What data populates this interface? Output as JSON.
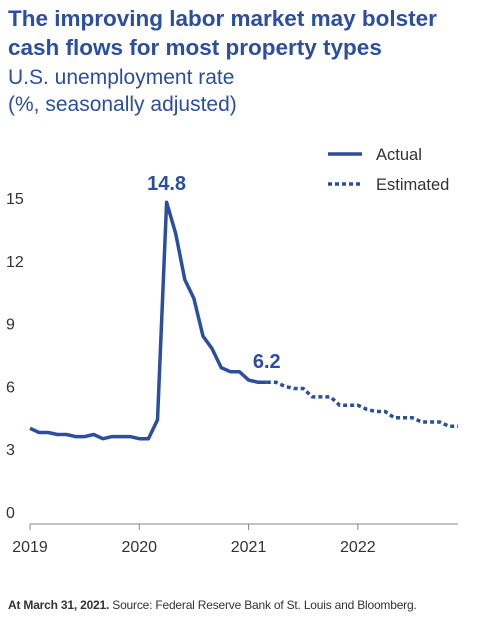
{
  "title": "The improving labor market may bolster cash flows for most property types",
  "subtitle": {
    "line1": "U.S. unemployment rate",
    "line2": "(%, seasonally adjusted)"
  },
  "footnote": {
    "bold": "At March 31, 2021.",
    "text": "Source: Federal Reserve Bank of St. Louis and Bloomberg."
  },
  "colors": {
    "series": "#2b4e9f",
    "axis": "#888888",
    "text": "#333333"
  },
  "chart_data": {
    "type": "line",
    "title": "The improving labor market may bolster cash flows for most property types",
    "subtitle": "U.S. unemployment rate (%, seasonally adjusted)",
    "ylim": [
      0,
      16
    ],
    "yticks": [
      0,
      3,
      6,
      9,
      12,
      15
    ],
    "xlim": [
      "2019-01",
      "2022-12"
    ],
    "xticks": [
      {
        "label": "2019",
        "date": "2019-01"
      },
      {
        "label": "2020",
        "date": "2020-01"
      },
      {
        "label": "2021",
        "date": "2021-01"
      },
      {
        "label": "2022",
        "date": "2022-01"
      }
    ],
    "grid": false,
    "legend_position": "top-right",
    "series": [
      {
        "name": "Actual",
        "style": "solid",
        "points": [
          {
            "x": "2019-01",
            "y": 4.0
          },
          {
            "x": "2019-02",
            "y": 3.8
          },
          {
            "x": "2019-03",
            "y": 3.8
          },
          {
            "x": "2019-04",
            "y": 3.7
          },
          {
            "x": "2019-05",
            "y": 3.7
          },
          {
            "x": "2019-06",
            "y": 3.6
          },
          {
            "x": "2019-07",
            "y": 3.6
          },
          {
            "x": "2019-08",
            "y": 3.7
          },
          {
            "x": "2019-09",
            "y": 3.5
          },
          {
            "x": "2019-10",
            "y": 3.6
          },
          {
            "x": "2019-11",
            "y": 3.6
          },
          {
            "x": "2019-12",
            "y": 3.6
          },
          {
            "x": "2020-01",
            "y": 3.5
          },
          {
            "x": "2020-02",
            "y": 3.5
          },
          {
            "x": "2020-03",
            "y": 4.4
          },
          {
            "x": "2020-04",
            "y": 14.8
          },
          {
            "x": "2020-05",
            "y": 13.3
          },
          {
            "x": "2020-06",
            "y": 11.1
          },
          {
            "x": "2020-07",
            "y": 10.2
          },
          {
            "x": "2020-08",
            "y": 8.4
          },
          {
            "x": "2020-09",
            "y": 7.8
          },
          {
            "x": "2020-10",
            "y": 6.9
          },
          {
            "x": "2020-11",
            "y": 6.7
          },
          {
            "x": "2020-12",
            "y": 6.7
          },
          {
            "x": "2021-01",
            "y": 6.3
          },
          {
            "x": "2021-02",
            "y": 6.2
          },
          {
            "x": "2021-03",
            "y": 6.2
          }
        ]
      },
      {
        "name": "Estimated",
        "style": "dashed",
        "points": [
          {
            "x": "2021-03",
            "y": 6.2
          },
          {
            "x": "2021-04",
            "y": 6.2
          },
          {
            "x": "2021-05",
            "y": 6.0
          },
          {
            "x": "2021-06",
            "y": 5.9
          },
          {
            "x": "2021-07",
            "y": 5.9
          },
          {
            "x": "2021-08",
            "y": 5.5
          },
          {
            "x": "2021-09",
            "y": 5.5
          },
          {
            "x": "2021-10",
            "y": 5.5
          },
          {
            "x": "2021-11",
            "y": 5.1
          },
          {
            "x": "2021-12",
            "y": 5.1
          },
          {
            "x": "2022-01",
            "y": 5.1
          },
          {
            "x": "2022-02",
            "y": 4.9
          },
          {
            "x": "2022-03",
            "y": 4.8
          },
          {
            "x": "2022-04",
            "y": 4.8
          },
          {
            "x": "2022-05",
            "y": 4.5
          },
          {
            "x": "2022-06",
            "y": 4.5
          },
          {
            "x": "2022-07",
            "y": 4.5
          },
          {
            "x": "2022-08",
            "y": 4.3
          },
          {
            "x": "2022-09",
            "y": 4.3
          },
          {
            "x": "2022-10",
            "y": 4.3
          },
          {
            "x": "2022-11",
            "y": 4.1
          },
          {
            "x": "2022-12",
            "y": 4.1
          }
        ]
      }
    ],
    "annotations": [
      {
        "text": "14.8",
        "x": "2020-04",
        "y": 14.8
      },
      {
        "text": "6.2",
        "x": "2021-03",
        "y": 6.2
      }
    ]
  }
}
